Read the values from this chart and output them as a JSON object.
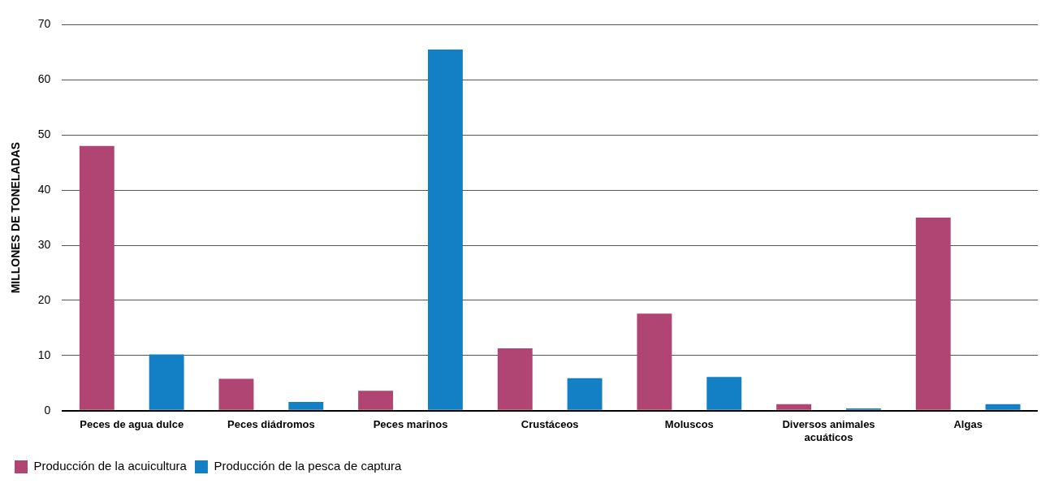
{
  "chart_data": {
    "type": "bar",
    "ylabel": "MILLONES DE TONELADAS",
    "categories": [
      "Peces de agua dulce",
      "Peces diádromos",
      "Peces marinos",
      "Crustáceos",
      "Moluscos",
      "Diversos animales acuáticos",
      "Algas"
    ],
    "series": [
      {
        "name": "Producción de la acuicultura",
        "color": "#b04473",
        "values": [
          48.0,
          5.8,
          3.6,
          11.3,
          17.6,
          1.2,
          35.0
        ]
      },
      {
        "name": "Producción de la pesca de captura",
        "color": "#1380c6",
        "values": [
          10.2,
          1.6,
          65.5,
          5.9,
          6.1,
          0.4,
          1.2
        ]
      }
    ],
    "ylim": [
      0,
      70
    ],
    "yticks": [
      0,
      10,
      20,
      30,
      40,
      50,
      60,
      70
    ],
    "grid": "y",
    "legend": "bottom left"
  }
}
